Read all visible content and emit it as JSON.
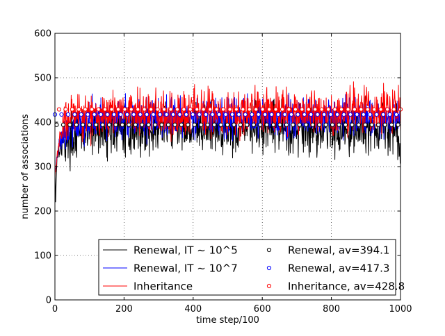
{
  "chart_data": {
    "type": "line",
    "title": "",
    "xlabel": "time step/100",
    "ylabel": "number of associations",
    "xlim": [
      0,
      1000
    ],
    "ylim": [
      0,
      600
    ],
    "x_ticks": [
      0,
      200,
      400,
      600,
      800,
      1000
    ],
    "y_ticks": [
      0,
      100,
      200,
      300,
      400,
      500,
      600
    ],
    "grid": true,
    "legend_position": "lower-right",
    "series": [
      {
        "name": "Renewal, IT ~ 10^5",
        "color": "#000000",
        "style": "line",
        "x": [
          0,
          2,
          4,
          6,
          10,
          15,
          20,
          30,
          40,
          50,
          60,
          80,
          100,
          120,
          150,
          180,
          200,
          250,
          300,
          350,
          380,
          400,
          450,
          500,
          550,
          600,
          650,
          700,
          750,
          800,
          850,
          900,
          950,
          990,
          1000
        ],
        "y": [
          290,
          225,
          280,
          320,
          340,
          350,
          355,
          360,
          365,
          370,
          372,
          375,
          378,
          380,
          382,
          384,
          385,
          386,
          387,
          388,
          392,
          388,
          385,
          387,
          388,
          385,
          387,
          386,
          388,
          386,
          385,
          387,
          386,
          380,
          320
        ],
        "noise": 28
      },
      {
        "name": "Renewal, IT ~ 10^7",
        "color": "#0000ff",
        "style": "line",
        "x": [
          0,
          3,
          6,
          10,
          15,
          20,
          30,
          40,
          60,
          80,
          100,
          150,
          170,
          200,
          250,
          300,
          350,
          400,
          450,
          500,
          550,
          600,
          650,
          700,
          750,
          800,
          850,
          900,
          950,
          1000
        ],
        "y": [
          290,
          300,
          320,
          340,
          360,
          370,
          380,
          388,
          395,
          400,
          402,
          405,
          410,
          408,
          410,
          412,
          415,
          412,
          410,
          411,
          412,
          410,
          410,
          411,
          410,
          412,
          410,
          411,
          410,
          412
        ],
        "noise": 22
      },
      {
        "name": "Inheritance",
        "color": "#ff0000",
        "style": "line",
        "x": [
          0,
          3,
          6,
          10,
          15,
          20,
          30,
          40,
          60,
          80,
          100,
          150,
          200,
          250,
          300,
          350,
          400,
          450,
          500,
          550,
          600,
          650,
          700,
          750,
          800,
          850,
          900,
          950,
          1000
        ],
        "y": [
          280,
          300,
          320,
          340,
          365,
          380,
          395,
          405,
          410,
          415,
          418,
          420,
          422,
          422,
          423,
          424,
          425,
          424,
          424,
          425,
          424,
          425,
          424,
          426,
          424,
          425,
          424,
          425,
          428
        ],
        "noise": 25
      },
      {
        "name": "Renewal, av=394.1",
        "color": "#000000",
        "style": "markers",
        "average": 394.1
      },
      {
        "name": "Renewal, av=417.3",
        "color": "#0000ff",
        "style": "markers",
        "average": 417.3
      },
      {
        "name": "Inheritance, av=428.8",
        "color": "#ff0000",
        "style": "markers",
        "average": 428.8
      }
    ],
    "legend": [
      {
        "label": "Renewal, IT ~ 10^5",
        "color": "#000000",
        "kind": "line"
      },
      {
        "label": "Renewal, IT ~ 10^7",
        "color": "#0000ff",
        "kind": "line"
      },
      {
        "label": "Inheritance",
        "color": "#ff0000",
        "kind": "line"
      },
      {
        "label": "Renewal, av=394.1",
        "color": "#000000",
        "kind": "marker"
      },
      {
        "label": "Renewal, av=417.3",
        "color": "#0000ff",
        "kind": "marker"
      },
      {
        "label": "Inheritance, av=428.8",
        "color": "#ff0000",
        "kind": "marker"
      }
    ]
  }
}
